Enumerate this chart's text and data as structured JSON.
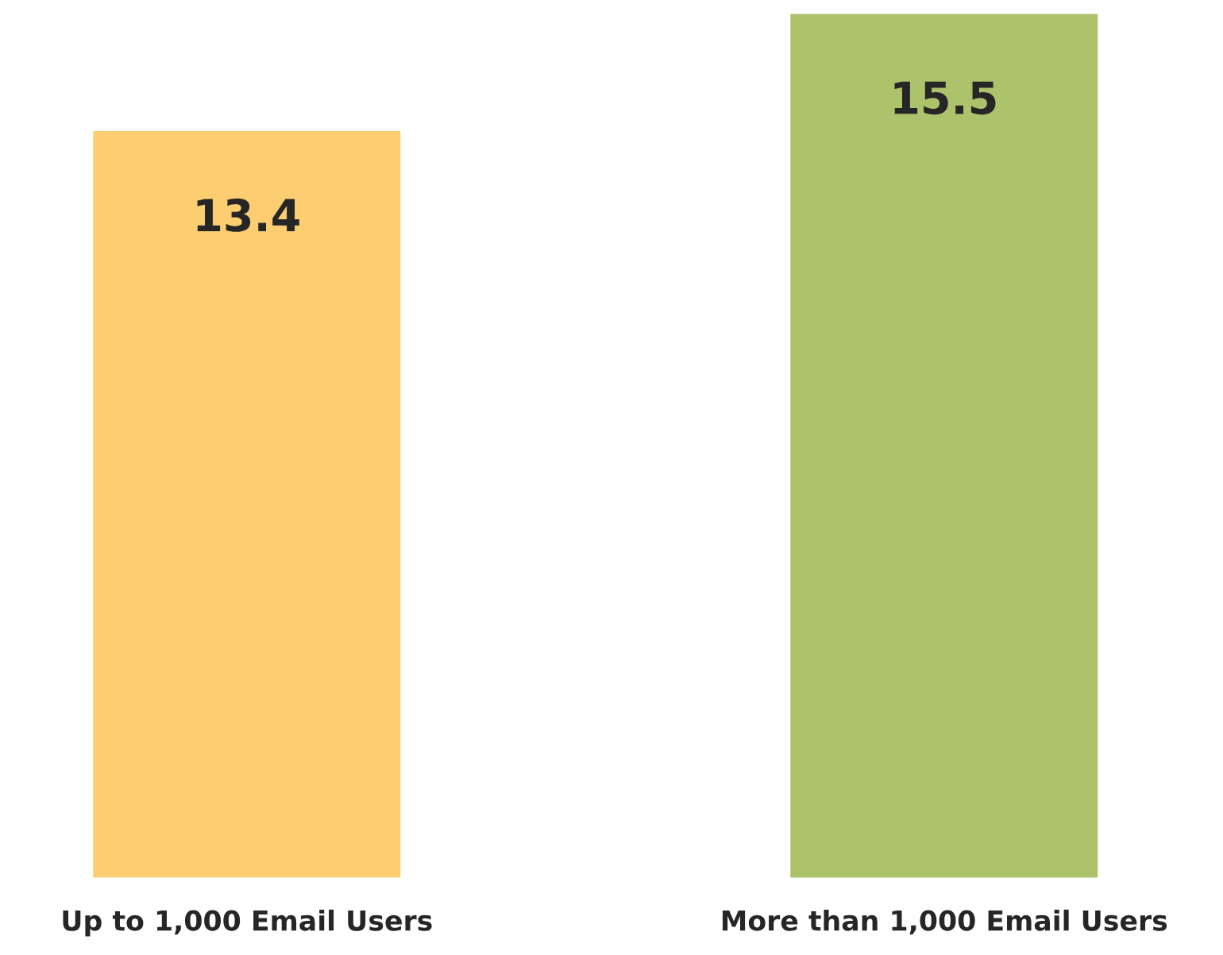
{
  "chart_data": {
    "type": "bar",
    "categories": [
      "Up to 1,000 Email Users",
      "More than 1,000 Email Users"
    ],
    "values": [
      13.4,
      15.5
    ],
    "colors": [
      "#fdcd71",
      "#acc26b"
    ],
    "data_labels": true,
    "grid": false,
    "legend": false
  }
}
